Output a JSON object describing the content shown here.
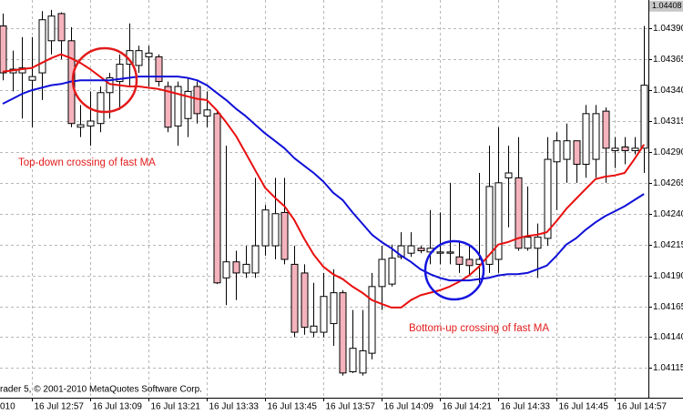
{
  "chart_data": {
    "type": "candlestick",
    "categories": [
      null,
      null,
      null,
      "16 Jul 12:57",
      null,
      null,
      null,
      null,
      null,
      "16 Jul 13:09",
      null,
      null,
      null,
      null,
      null,
      "16 Jul 13:21",
      null,
      null,
      null,
      null,
      null,
      "16 Jul 13:33",
      null,
      null,
      null,
      null,
      null,
      "16 Jul 13:45",
      null,
      null,
      null,
      null,
      null,
      "16 Jul 13:57",
      null,
      null,
      null,
      null,
      null,
      "16 Jul 14:09",
      null,
      null,
      null,
      null,
      null,
      "16 Jul 14:21",
      null,
      null,
      null,
      null,
      null,
      "16 Jul 14:33",
      null,
      null,
      null,
      null,
      null,
      "16 Jul 14:45",
      null,
      null,
      null,
      null,
      null,
      "16 Jul 14:57",
      null,
      null,
      null
    ],
    "clipped_x_label": "010",
    "open": [
      1.04392,
      1.04354,
      1.04354,
      1.04348,
      1.04354,
      1.0438,
      1.04402,
      1.0438,
      1.0431,
      1.04311,
      1.04313,
      1.04338,
      1.04347,
      1.04361,
      1.0436,
      1.04367,
      1.04367,
      1.04343,
      1.04311,
      1.04317,
      1.04343,
      1.04319,
      1.04321,
      1.04188,
      1.04201,
      1.04192,
      1.04192,
      1.04214,
      1.04214,
      1.04241,
      1.04199,
      1.04192,
      1.04144,
      1.04144,
      1.04151,
      1.04176,
      1.04112,
      1.04111,
      1.04127,
      1.04181,
      1.04183,
      1.04205,
      1.04208,
      1.04212,
      1.04209,
      1.04208,
      1.04208,
      1.04205,
      1.04203,
      1.04199,
      1.04199,
      1.04203,
      1.04269,
      1.04269,
      1.04212,
      1.04212,
      1.0422,
      1.04282,
      1.04284,
      1.04299,
      1.0428,
      1.04284,
      1.04323,
      1.04291,
      1.04294,
      1.04291,
      1.04293
    ],
    "high": [
      1.04402,
      1.04372,
      1.04383,
      1.04383,
      1.04404,
      1.04405,
      1.04403,
      1.04391,
      1.04328,
      1.04339,
      1.04343,
      1.04354,
      1.04369,
      1.04394,
      1.04376,
      1.04376,
      1.04369,
      1.04347,
      1.04347,
      1.0435,
      1.04347,
      1.04339,
      1.04324,
      1.04295,
      1.0421,
      1.04214,
      1.04269,
      1.04247,
      1.04269,
      1.04269,
      1.04214,
      1.04199,
      1.04184,
      1.04192,
      1.04195,
      1.04178,
      1.04162,
      1.04162,
      1.04192,
      1.04214,
      1.04215,
      1.04225,
      1.04225,
      1.04214,
      1.04243,
      1.04241,
      1.04265,
      1.04218,
      1.04214,
      1.04273,
      1.04295,
      1.0431,
      1.04295,
      1.04302,
      1.04262,
      1.04232,
      1.04302,
      1.04306,
      1.04313,
      1.04299,
      1.04328,
      1.04328,
      1.04326,
      1.04302,
      1.04302,
      1.04302,
      1.04392
    ],
    "low": [
      1.04348,
      1.04339,
      1.04317,
      1.0431,
      1.04332,
      1.04369,
      1.04365,
      1.0431,
      1.04302,
      1.04295,
      1.04306,
      1.04317,
      1.04324,
      1.04343,
      1.04354,
      1.04343,
      1.04343,
      1.04306,
      1.04295,
      1.04302,
      1.04313,
      1.0431,
      1.04183,
      1.04166,
      1.0417,
      1.04188,
      1.04188,
      1.04206,
      1.04203,
      1.04199,
      1.0414,
      1.04142,
      1.0414,
      1.0414,
      1.04133,
      1.04109,
      1.04111,
      1.04109,
      1.04122,
      1.04162,
      1.04181,
      1.04203,
      1.04205,
      1.04208,
      1.04199,
      1.04199,
      1.04199,
      1.04192,
      1.0419,
      1.04184,
      1.04192,
      1.04192,
      1.04229,
      1.0421,
      1.0421,
      1.04188,
      1.04214,
      1.04243,
      1.04265,
      1.04265,
      1.04269,
      1.04269,
      1.04265,
      1.04277,
      1.0428,
      1.04288,
      1.04273
    ],
    "close": [
      1.04354,
      1.04357,
      1.04358,
      1.04351,
      1.04397,
      1.044,
      1.0438,
      1.04313,
      1.04312,
      1.04315,
      1.04338,
      1.0435,
      1.04361,
      1.04372,
      1.04372,
      1.0437,
      1.04347,
      1.0431,
      1.04343,
      1.04339,
      1.04321,
      1.04324,
      1.04184,
      1.04201,
      1.04192,
      1.04199,
      1.04214,
      1.04243,
      1.0424,
      1.04203,
      1.04144,
      1.04148,
      1.04149,
      1.04173,
      1.04176,
      1.04111,
      1.04131,
      1.04129,
      1.04181,
      1.04203,
      1.04204,
      1.04214,
      1.04214,
      1.0421,
      1.04212,
      1.04209,
      1.04209,
      1.04199,
      1.04198,
      1.04203,
      1.04262,
      1.04265,
      1.04273,
      1.04212,
      1.04221,
      1.04221,
      1.04284,
      1.04299,
      1.04299,
      1.0428,
      1.04321,
      1.04321,
      1.04293,
      1.04293,
      1.04291,
      1.04293,
      1.04344
    ],
    "up_color": "#ffffff",
    "down_color": "#f5b3bd",
    "series": [
      {
        "color": "#e8100f",
        "values": [
          1.04355,
          1.04356,
          1.04357,
          1.04358,
          1.04362,
          1.04366,
          1.04369,
          1.04366,
          1.04362,
          1.04357,
          1.04351,
          1.04345,
          1.04344,
          1.04343,
          1.04343,
          1.04342,
          1.04341,
          1.04339,
          1.04337,
          1.04335,
          1.04333,
          1.04332,
          1.04324,
          1.04314,
          1.04303,
          1.04289,
          1.04275,
          1.04261,
          1.04253,
          1.04246,
          1.04235,
          1.0422,
          1.04207,
          1.04197,
          1.04191,
          1.04187,
          1.04181,
          1.04176,
          1.0417,
          1.04167,
          1.04164,
          1.04164,
          1.0417,
          1.04174,
          1.04176,
          1.04178,
          1.04181,
          1.04185,
          1.0419,
          1.04197,
          1.04206,
          1.04215,
          1.04217,
          1.0422,
          1.04222,
          1.04223,
          1.04225,
          1.04234,
          1.04244,
          1.04252,
          1.0426,
          1.04268,
          1.0427,
          1.04271,
          1.04273,
          1.04284,
          1.04296
        ]
      },
      {
        "color": "#1010d8",
        "values": [
          1.04329,
          1.04333,
          1.04337,
          1.0434,
          1.04342,
          1.04344,
          1.04345,
          1.04347,
          1.04348,
          1.04348,
          1.04348,
          1.04348,
          1.04349,
          1.0435,
          1.04351,
          1.04351,
          1.04351,
          1.04351,
          1.04351,
          1.0435,
          1.04348,
          1.04344,
          1.04338,
          1.04332,
          1.04325,
          1.04319,
          1.04312,
          1.04305,
          1.04299,
          1.04293,
          1.04285,
          1.04279,
          1.04273,
          1.04266,
          1.04257,
          1.04251,
          1.04241,
          1.04232,
          1.04223,
          1.04217,
          1.04212,
          1.04206,
          1.04201,
          1.04195,
          1.04191,
          1.04188,
          1.04186,
          1.04186,
          1.04186,
          1.04187,
          1.04188,
          1.0419,
          1.04191,
          1.04191,
          1.04192,
          1.04195,
          1.04198,
          1.04206,
          1.04215,
          1.0422,
          1.04227,
          1.04233,
          1.04238,
          1.04242,
          1.04246,
          1.04251,
          1.04256
        ]
      }
    ],
    "ylim": [
      1.04091,
      1.04413
    ],
    "yticks": [
      {
        "value": 1.04115,
        "label": "1.04115"
      },
      {
        "value": 1.0414,
        "label": "1.04140"
      },
      {
        "value": 1.04165,
        "label": "1.04165"
      },
      {
        "value": 1.0419,
        "label": "1.04190"
      },
      {
        "value": 1.04215,
        "label": "1.04215"
      },
      {
        "value": 1.0424,
        "label": "1.04240"
      },
      {
        "value": 1.04265,
        "label": "1.04265"
      },
      {
        "value": 1.0429,
        "label": "1.04290"
      },
      {
        "value": 1.04315,
        "label": "1.04315"
      },
      {
        "value": 1.0434,
        "label": "1.04340"
      },
      {
        "value": 1.04365,
        "label": "1.04365"
      },
      {
        "value": 1.0439,
        "label": "1.04390"
      }
    ],
    "last_price": 1.04408,
    "grid": true,
    "annotations": [
      "Top-down crossing of fast MA",
      "Bottom-up crossing of fast MA"
    ],
    "copyright": "rader 5, © 2001-2010 MetaQuotes Software Corp."
  }
}
